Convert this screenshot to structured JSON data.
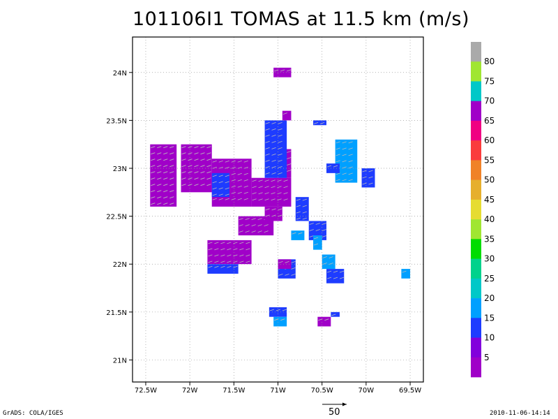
{
  "title": "101106I1 TOMAS at 11.5 km (m/s)",
  "footer_left": "GrADS: COLA/IGES",
  "footer_right": "2010-11-06-14:14",
  "reference_vector_label": "50",
  "colorbar": {
    "labels": [
      "5",
      "10",
      "15",
      "20",
      "25",
      "30",
      "35",
      "40",
      "45",
      "50",
      "55",
      "60",
      "65",
      "70",
      "75",
      "80"
    ],
    "colors": [
      "#a000c8",
      "#8200dc",
      "#1e3cff",
      "#00a0ff",
      "#00c8c8",
      "#00d28c",
      "#00dc00",
      "#a0e632",
      "#e6dc32",
      "#e6af2d",
      "#f08228",
      "#fa3c3c",
      "#f00082",
      "#a000c8",
      "#00c8c8",
      "#a0e632",
      "#aaaaaa"
    ]
  },
  "chart_data": {
    "type": "heatmap",
    "title": "101106I1 TOMAS at 11.5 km (m/s)",
    "xlabel": "",
    "ylabel": "",
    "x_ticks": [
      "72.5W",
      "72W",
      "71.5W",
      "71W",
      "70.5W",
      "70W",
      "69.5W"
    ],
    "x_tick_values": [
      -72.5,
      -72,
      -71.5,
      -71,
      -70.5,
      -70,
      -69.5
    ],
    "y_ticks": [
      "21N",
      "21.5N",
      "22N",
      "22.5N",
      "23N",
      "23.5N",
      "24N"
    ],
    "y_tick_values": [
      21,
      21.5,
      22,
      22.5,
      23,
      23.5,
      24
    ],
    "xlim": [
      -72.65,
      -69.35
    ],
    "ylim": [
      20.77,
      24.37
    ],
    "grid": true,
    "cell_size_deg": 0.05,
    "regions": [
      {
        "lon": [
          -72.45,
          -72.15
        ],
        "lat": [
          22.6,
          23.25
        ],
        "color": "#a000c8"
      },
      {
        "lon": [
          -72.1,
          -71.75
        ],
        "lat": [
          22.75,
          23.25
        ],
        "color": "#a000c8"
      },
      {
        "lon": [
          -71.75,
          -71.3
        ],
        "lat": [
          22.6,
          23.1
        ],
        "color": "#a000c8"
      },
      {
        "lon": [
          -71.3,
          -70.85
        ],
        "lat": [
          22.6,
          22.9
        ],
        "color": "#a000c8"
      },
      {
        "lon": [
          -71.05,
          -70.85
        ],
        "lat": [
          22.9,
          23.2
        ],
        "color": "#a000c8"
      },
      {
        "lon": [
          -71.15,
          -70.9
        ],
        "lat": [
          22.9,
          23.5
        ],
        "color": "#1e3cff"
      },
      {
        "lon": [
          -70.95,
          -70.85
        ],
        "lat": [
          23.5,
          23.6
        ],
        "color": "#a000c8"
      },
      {
        "lon": [
          -71.05,
          -70.85
        ],
        "lat": [
          23.95,
          24.05
        ],
        "color": "#a000c8"
      },
      {
        "lon": [
          -70.6,
          -70.45
        ],
        "lat": [
          23.45,
          23.5
        ],
        "color": "#1e3cff"
      },
      {
        "lon": [
          -71.75,
          -71.55
        ],
        "lat": [
          22.7,
          22.95
        ],
        "color": "#1e3cff"
      },
      {
        "lon": [
          -71.45,
          -71.05
        ],
        "lat": [
          22.3,
          22.5
        ],
        "color": "#a000c8"
      },
      {
        "lon": [
          -71.15,
          -70.95
        ],
        "lat": [
          22.45,
          22.6
        ],
        "color": "#a000c8"
      },
      {
        "lon": [
          -71.8,
          -71.3
        ],
        "lat": [
          22.0,
          22.25
        ],
        "color": "#a000c8"
      },
      {
        "lon": [
          -71.8,
          -71.45
        ],
        "lat": [
          21.9,
          22.0
        ],
        "color": "#1e3cff"
      },
      {
        "lon": [
          -70.8,
          -70.65
        ],
        "lat": [
          22.45,
          22.7
        ],
        "color": "#1e3cff"
      },
      {
        "lon": [
          -70.65,
          -70.45
        ],
        "lat": [
          22.25,
          22.45
        ],
        "color": "#1e3cff"
      },
      {
        "lon": [
          -70.6,
          -70.5
        ],
        "lat": [
          22.15,
          22.3
        ],
        "color": "#00a0ff"
      },
      {
        "lon": [
          -70.85,
          -70.7
        ],
        "lat": [
          22.25,
          22.35
        ],
        "color": "#00a0ff"
      },
      {
        "lon": [
          -70.5,
          -70.35
        ],
        "lat": [
          21.95,
          22.1
        ],
        "color": "#00a0ff"
      },
      {
        "lon": [
          -70.45,
          -70.25
        ],
        "lat": [
          21.8,
          21.95
        ],
        "color": "#1e3cff"
      },
      {
        "lon": [
          -71.0,
          -70.8
        ],
        "lat": [
          21.85,
          22.05
        ],
        "color": "#1e3cff"
      },
      {
        "lon": [
          -71.0,
          -70.85
        ],
        "lat": [
          21.95,
          22.05
        ],
        "color": "#a000c8"
      },
      {
        "lon": [
          -70.35,
          -70.1
        ],
        "lat": [
          22.85,
          23.3
        ],
        "color": "#00a0ff"
      },
      {
        "lon": [
          -70.45,
          -70.3
        ],
        "lat": [
          22.95,
          23.05
        ],
        "color": "#1e3cff"
      },
      {
        "lon": [
          -70.05,
          -69.9
        ],
        "lat": [
          22.8,
          23.0
        ],
        "color": "#1e3cff"
      },
      {
        "lon": [
          -71.1,
          -70.9
        ],
        "lat": [
          21.45,
          21.55
        ],
        "color": "#1e3cff"
      },
      {
        "lon": [
          -71.05,
          -70.9
        ],
        "lat": [
          21.35,
          21.45
        ],
        "color": "#00a0ff"
      },
      {
        "lon": [
          -70.55,
          -70.4
        ],
        "lat": [
          21.35,
          21.45
        ],
        "color": "#a000c8"
      },
      {
        "lon": [
          -70.4,
          -70.3
        ],
        "lat": [
          21.45,
          21.5
        ],
        "color": "#1e3cff"
      },
      {
        "lon": [
          -69.6,
          -69.5
        ],
        "lat": [
          21.85,
          21.95
        ],
        "color": "#00a0ff"
      }
    ]
  }
}
